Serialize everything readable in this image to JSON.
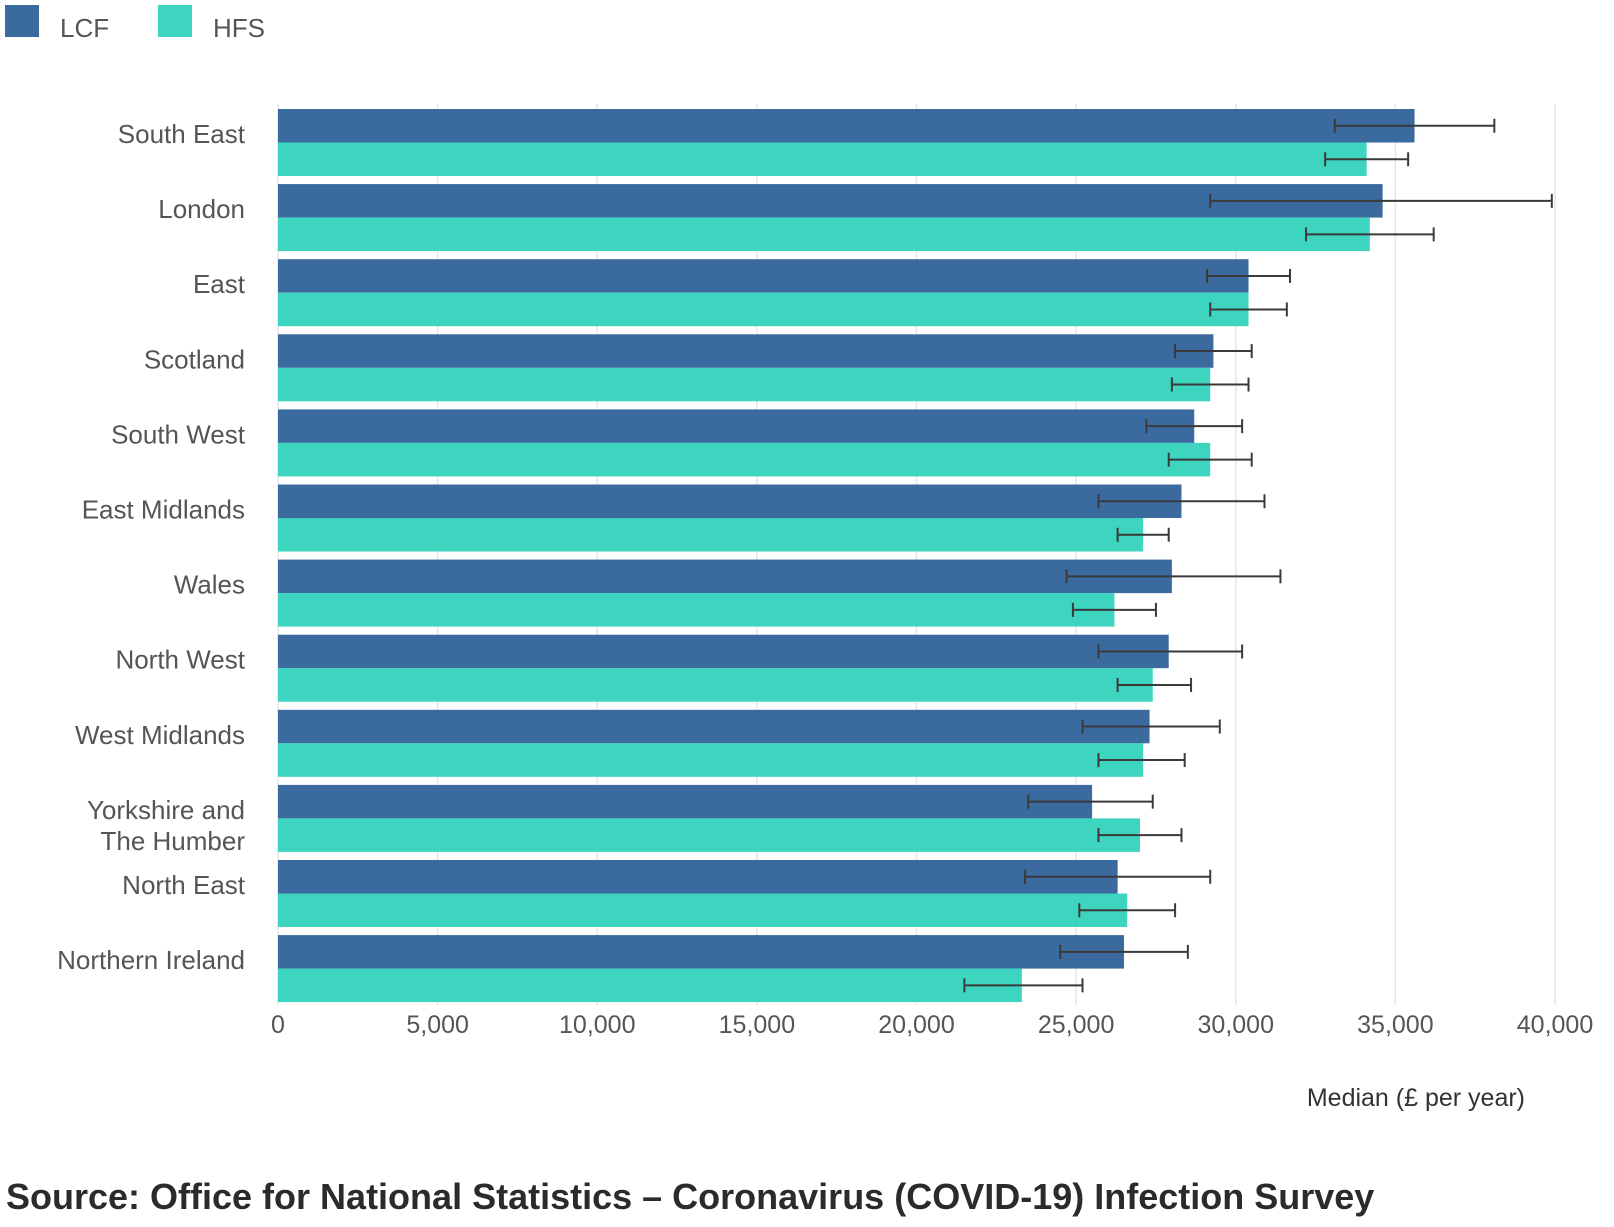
{
  "chart_data": {
    "type": "bar",
    "orientation": "horizontal",
    "xlabel": "Median (£ per year)",
    "xlim": [
      0,
      40000
    ],
    "x_ticks": [
      "0",
      "5,000",
      "10,000",
      "15,000",
      "20,000",
      "25,000",
      "30,000",
      "35,000",
      "40,000"
    ],
    "grid": true,
    "legend_position": "top-left",
    "categories": [
      [
        "South East"
      ],
      [
        "London"
      ],
      [
        "East"
      ],
      [
        "Scotland"
      ],
      [
        "South West"
      ],
      [
        "East Midlands"
      ],
      [
        "Wales"
      ],
      [
        "North West"
      ],
      [
        "West Midlands"
      ],
      [
        "Yorkshire and",
        "The Humber"
      ],
      [
        "North East"
      ],
      [
        "Northern Ireland"
      ]
    ],
    "series": [
      {
        "name": "LCF",
        "color": "#3a6a9e",
        "values": [
          35600,
          34600,
          30400,
          29300,
          28700,
          28300,
          28000,
          27900,
          27300,
          25500,
          26300,
          26500
        ],
        "error_low": [
          33100,
          29200,
          29100,
          28100,
          27200,
          25700,
          24700,
          25700,
          25200,
          23500,
          23400,
          24500
        ],
        "error_high": [
          38100,
          39900,
          31700,
          30500,
          30200,
          30900,
          31400,
          30200,
          29500,
          27400,
          29200,
          28500
        ]
      },
      {
        "name": "HFS",
        "color": "#3dd5bf",
        "values": [
          34100,
          34200,
          30400,
          29200,
          29200,
          27100,
          26200,
          27400,
          27100,
          27000,
          26600,
          23300
        ],
        "error_low": [
          32800,
          32200,
          29200,
          28000,
          27900,
          26300,
          24900,
          26300,
          25700,
          25700,
          25100,
          21500
        ],
        "error_high": [
          35400,
          36200,
          31600,
          30400,
          30500,
          27900,
          27500,
          28600,
          28400,
          28300,
          28100,
          25200
        ]
      }
    ]
  },
  "source": "Source: Office for National Statistics – Coronavirus (COVID-19) Infection Survey"
}
